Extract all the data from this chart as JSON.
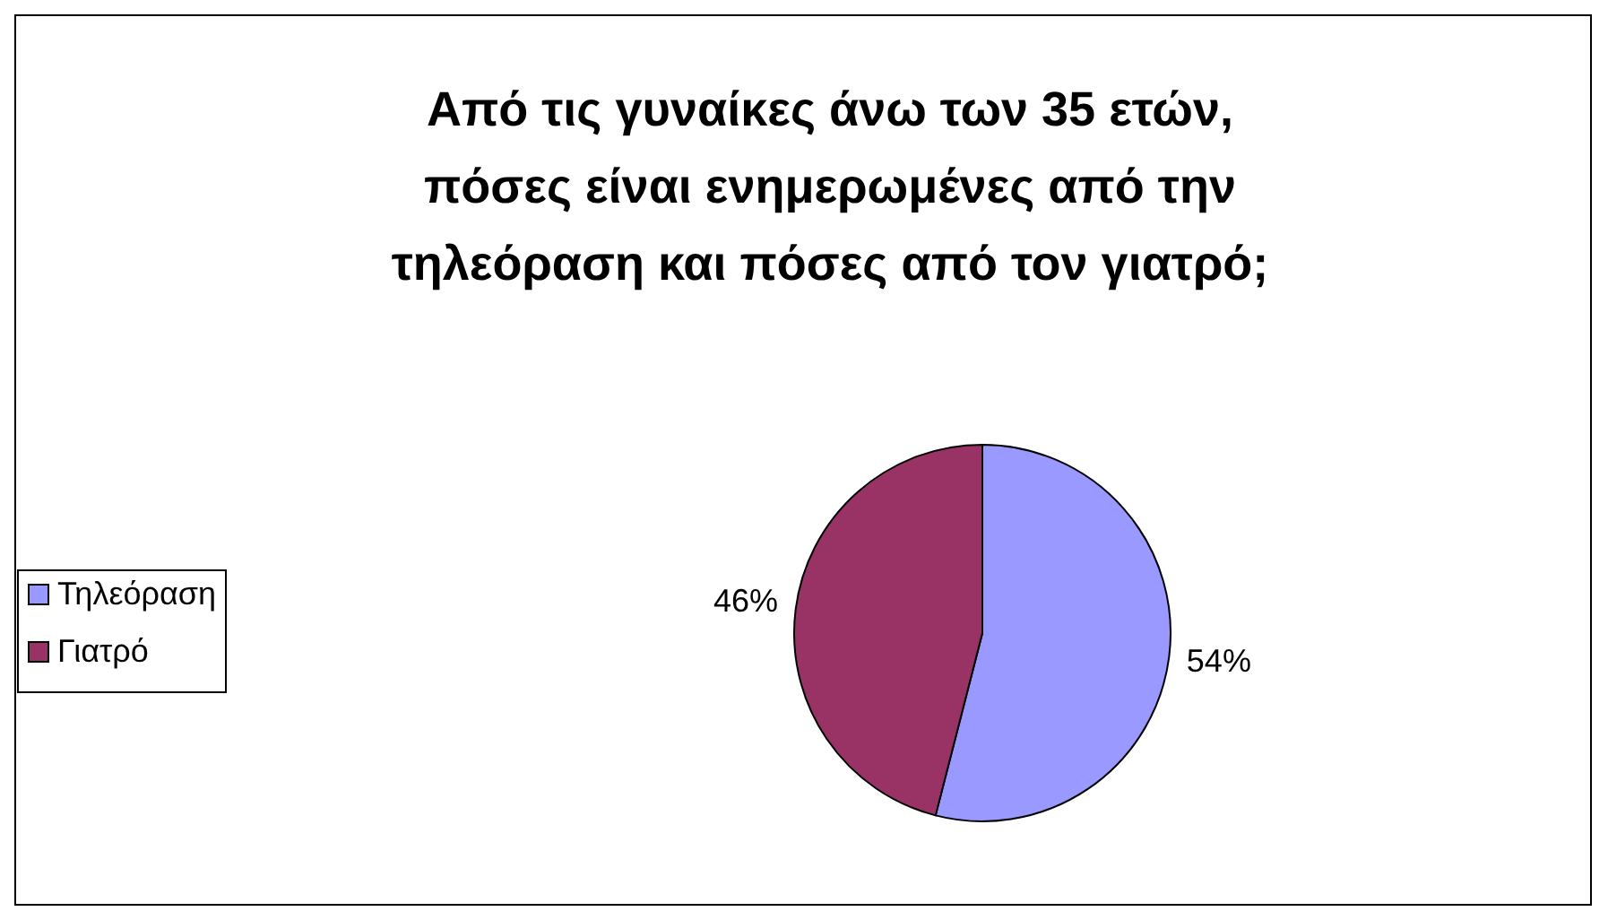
{
  "chart_data": {
    "type": "pie",
    "title": "Από τις γυναίκες άνω των 35 ετών,\nπόσες είναι ενημερωμένες από την\nτηλεόραση και πόσες από τον γιατρό;",
    "categories": [
      "Τηλεόραση",
      "Γιατρό"
    ],
    "values": [
      54,
      46
    ],
    "colors": [
      "#9999ff",
      "#993366"
    ],
    "value_labels": [
      "54%",
      "46%"
    ],
    "legend": "left"
  }
}
